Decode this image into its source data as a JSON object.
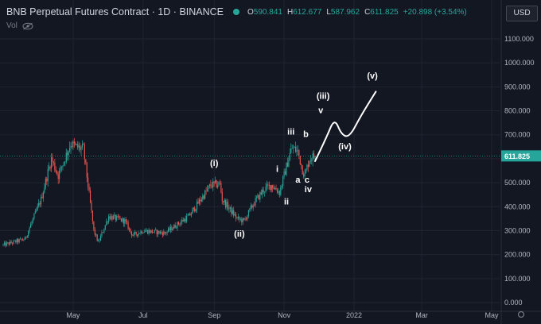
{
  "header": {
    "title": "BNB Perpetual Futures Contract · 1D · BINANCE",
    "open": "590.841",
    "high": "612.677",
    "low": "587.962",
    "close": "611.825",
    "change": "+20.898 (+3.54%)",
    "volume_label": "Vol"
  },
  "currency_button": "USD",
  "colors": {
    "up": "#26a69a",
    "down": "#ef5350",
    "background": "#131722",
    "grid": "#1f2430",
    "annotation": "#ffffff",
    "price_line": "#26a69a"
  },
  "chart_data": {
    "type": "candlestick",
    "y_axis": {
      "min": 0,
      "max": 1200,
      "ticks": [
        "0.000",
        "100.000",
        "200.000",
        "300.000",
        "400.000",
        "500.000",
        "600.000",
        "700.000",
        "800.000",
        "900.000",
        "1000.000",
        "1100.000"
      ]
    },
    "x_axis": {
      "ticks": [
        "May",
        "Jul",
        "Sep",
        "Nov",
        "2022",
        "Mar",
        "May"
      ]
    },
    "last_price": 611.825,
    "candles": [],
    "key_points": [
      {
        "date": "2021-03-01",
        "price": 240
      },
      {
        "date": "2021-03-20",
        "price": 265
      },
      {
        "date": "2021-04-03",
        "price": 430
      },
      {
        "date": "2021-04-12",
        "price": 600
      },
      {
        "date": "2021-04-18",
        "price": 530
      },
      {
        "date": "2021-04-29",
        "price": 665
      },
      {
        "date": "2021-05-03",
        "price": 650
      },
      {
        "date": "2021-05-10",
        "price": 640
      },
      {
        "date": "2021-05-19",
        "price": 300
      },
      {
        "date": "2021-05-23",
        "price": 250
      },
      {
        "date": "2021-06-01",
        "price": 360
      },
      {
        "date": "2021-06-15",
        "price": 340
      },
      {
        "date": "2021-06-22",
        "price": 280
      },
      {
        "date": "2021-07-01",
        "price": 300
      },
      {
        "date": "2021-07-20",
        "price": 290
      },
      {
        "date": "2021-08-10",
        "price": 360
      },
      {
        "date": "2021-08-29",
        "price": 490
      },
      {
        "date": "2021-09-06",
        "price": 495
      },
      {
        "date": "2021-09-08",
        "price": 430
      },
      {
        "date": "2021-09-21",
        "price": 350
      },
      {
        "date": "2021-09-27",
        "price": 340
      },
      {
        "date": "2021-10-05",
        "price": 410
      },
      {
        "date": "2021-10-14",
        "price": 470
      },
      {
        "date": "2021-10-21",
        "price": 490
      },
      {
        "date": "2021-10-28",
        "price": 460
      },
      {
        "date": "2021-11-06",
        "price": 620
      },
      {
        "date": "2021-11-08",
        "price": 645
      },
      {
        "date": "2021-11-13",
        "price": 630
      },
      {
        "date": "2021-11-17",
        "price": 555
      },
      {
        "date": "2021-11-19",
        "price": 530
      },
      {
        "date": "2021-11-23",
        "price": 600
      },
      {
        "date": "2021-11-28",
        "price": 612
      }
    ],
    "annotations": [
      {
        "text": "(i)",
        "date": "2021-09-01",
        "price": 570
      },
      {
        "text": "(ii)",
        "date": "2021-09-23",
        "price": 275
      },
      {
        "text": "i",
        "date": "2021-10-26",
        "price": 545
      },
      {
        "text": "ii",
        "date": "2021-11-03",
        "price": 410
      },
      {
        "text": "iii",
        "date": "2021-11-07",
        "price": 700
      },
      {
        "text": "a",
        "date": "2021-11-13",
        "price": 500
      },
      {
        "text": "b",
        "date": "2021-11-20",
        "price": 690
      },
      {
        "text": "c",
        "date": "2021-11-21",
        "price": 500
      },
      {
        "text": "iv",
        "date": "2021-11-22",
        "price": 460
      },
      {
        "text": "v",
        "date": "2021-12-03",
        "price": 790
      },
      {
        "text": "(iii)",
        "date": "2021-12-05",
        "price": 850
      },
      {
        "text": "(iv)",
        "date": "2021-12-24",
        "price": 640
      },
      {
        "text": "(v)",
        "date": "2022-01-17",
        "price": 935
      }
    ],
    "projection": [
      {
        "date": "2021-11-28",
        "price": 590
      },
      {
        "date": "2021-12-08",
        "price": 690
      },
      {
        "date": "2021-12-15",
        "price": 770
      },
      {
        "date": "2021-12-21",
        "price": 700
      },
      {
        "date": "2021-12-28",
        "price": 690
      },
      {
        "date": "2022-01-07",
        "price": 780
      },
      {
        "date": "2022-01-20",
        "price": 880
      }
    ]
  }
}
